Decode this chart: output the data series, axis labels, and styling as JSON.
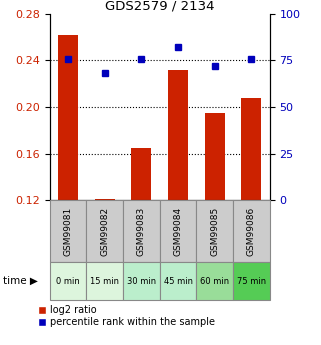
{
  "title": "GDS2579 / 2134",
  "categories": [
    "GSM99081",
    "GSM99082",
    "GSM99083",
    "GSM99084",
    "GSM99085",
    "GSM99086"
  ],
  "time_labels": [
    "0 min",
    "15 min",
    "30 min",
    "45 min",
    "60 min",
    "75 min"
  ],
  "log2_ratio": [
    0.262,
    0.121,
    0.165,
    0.232,
    0.195,
    0.208
  ],
  "percentile_rank": [
    76,
    68,
    76,
    82,
    72,
    76
  ],
  "bar_color": "#cc2200",
  "dot_color": "#0000bb",
  "ylim_left": [
    0.12,
    0.28
  ],
  "ylim_right": [
    0,
    100
  ],
  "yticks_left": [
    0.12,
    0.16,
    0.2,
    0.24,
    0.28
  ],
  "yticks_right": [
    0,
    25,
    50,
    75,
    100
  ],
  "grid_ticks": [
    0.16,
    0.2,
    0.24
  ],
  "time_colors": [
    "#ddf5dd",
    "#ddf5dd",
    "#bbeecc",
    "#bbeecc",
    "#99dd99",
    "#55cc55"
  ],
  "bar_width": 0.55,
  "background_color": "#ffffff",
  "label_area_color": "#cccccc",
  "legend_red_label": "log2 ratio",
  "legend_blue_label": "percentile rank within the sample"
}
